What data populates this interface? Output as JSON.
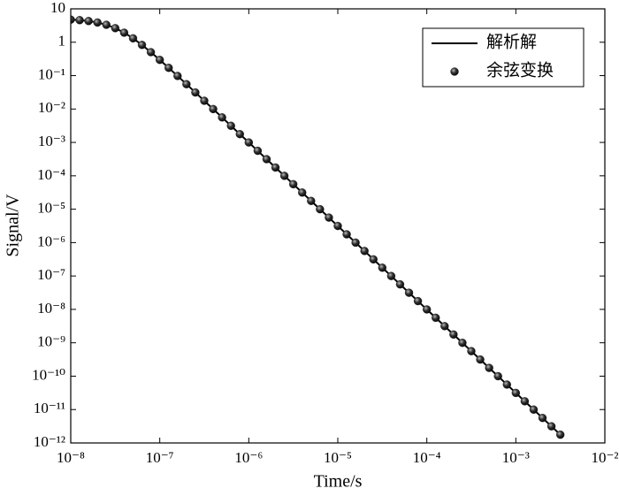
{
  "chart_data": {
    "type": "line",
    "xlabel": "Time/s",
    "ylabel": "Signal/V",
    "xscale": "log",
    "yscale": "log",
    "xlim": [
      1e-08,
      0.01
    ],
    "ylim": [
      1e-12,
      10
    ],
    "xticks": [
      {
        "value": 1e-08,
        "label": "10⁻⁸"
      },
      {
        "value": 1e-07,
        "label": "10⁻⁷"
      },
      {
        "value": 1e-06,
        "label": "10⁻⁶"
      },
      {
        "value": 1e-05,
        "label": "10⁻⁵"
      },
      {
        "value": 0.0001,
        "label": "10⁻⁴"
      },
      {
        "value": 0.001,
        "label": "10⁻³"
      },
      {
        "value": 0.01,
        "label": "10⁻²"
      }
    ],
    "yticks": [
      {
        "value": 1e-12,
        "label": "10⁻¹²"
      },
      {
        "value": 1e-11,
        "label": "10⁻¹¹"
      },
      {
        "value": 1e-10,
        "label": "10⁻¹⁰"
      },
      {
        "value": 1e-09,
        "label": "10⁻⁹"
      },
      {
        "value": 1e-08,
        "label": "10⁻⁸"
      },
      {
        "value": 1e-07,
        "label": "10⁻⁷"
      },
      {
        "value": 1e-06,
        "label": "10⁻⁶"
      },
      {
        "value": 1e-05,
        "label": "10⁻⁵"
      },
      {
        "value": 0.0001,
        "label": "10⁻⁴"
      },
      {
        "value": 0.001,
        "label": "10⁻³"
      },
      {
        "value": 0.01,
        "label": "10⁻²"
      },
      {
        "value": 0.1,
        "label": "10⁻¹"
      },
      1,
      10
    ],
    "legend": "upper right",
    "x": [
      1e-08,
      1.259e-08,
      1.585e-08,
      1.995e-08,
      2.512e-08,
      3.162e-08,
      3.981e-08,
      5.012e-08,
      6.31e-08,
      7.943e-08,
      1e-07,
      1.259e-07,
      1.585e-07,
      1.995e-07,
      2.512e-07,
      3.162e-07,
      3.981e-07,
      5.012e-07,
      6.31e-07,
      7.943e-07,
      1e-06,
      1.259e-06,
      1.585e-06,
      1.995e-06,
      2.512e-06,
      3.162e-06,
      3.981e-06,
      5.012e-06,
      6.31e-06,
      7.943e-06,
      1e-05,
      1.259e-05,
      1.585e-05,
      1.995e-05,
      2.512e-05,
      3.162e-05,
      3.981e-05,
      5.012e-05,
      6.31e-05,
      7.943e-05,
      0.0001,
      0.0001259,
      0.0001585,
      0.0001995,
      0.0002512,
      0.0003162,
      0.0003981,
      0.0005012,
      0.000631,
      0.0007943,
      0.001,
      0.001259,
      0.001585,
      0.001995,
      0.002512,
      0.003162
    ],
    "series": [
      {
        "name": "解析解",
        "mode": "line",
        "color": "#000000",
        "values": [
          4.761,
          4.591,
          4.316,
          3.901,
          3.331,
          2.644,
          1.934,
          1.31,
          0.8317,
          0.5044,
          0.2968,
          0.1714,
          0.0978,
          0.05548,
          0.03135,
          0.01768,
          0.00998,
          0.00561,
          0.00315,
          0.00177,
          0.000998,
          0.000561,
          0.000315,
          0.000177,
          9.98e-05,
          5.61e-05,
          3.15e-05,
          1.77e-05,
          9.98e-06,
          5.61e-06,
          3.15e-06,
          1.77e-06,
          9.98e-07,
          5.61e-07,
          3.15e-07,
          1.77e-07,
          9.98e-08,
          5.61e-08,
          3.15e-08,
          1.77e-08,
          9.98e-09,
          5.61e-09,
          3.15e-09,
          1.77e-09,
          9.98e-10,
          5.61e-10,
          3.15e-10,
          1.77e-10,
          9.98e-11,
          5.61e-11,
          3.15e-11,
          1.77e-11,
          9.98e-12,
          5.61e-12,
          3.15e-12,
          1.77e-12
        ]
      },
      {
        "name": "余弦变换",
        "mode": "markers",
        "color": "#222222",
        "values": [
          4.761,
          4.591,
          4.316,
          3.901,
          3.331,
          2.644,
          1.934,
          1.31,
          0.8317,
          0.5044,
          0.2968,
          0.1714,
          0.0978,
          0.05548,
          0.03135,
          0.01768,
          0.00998,
          0.00561,
          0.00315,
          0.00177,
          0.000998,
          0.000561,
          0.000315,
          0.000177,
          9.98e-05,
          5.61e-05,
          3.15e-05,
          1.77e-05,
          9.98e-06,
          5.61e-06,
          3.15e-06,
          1.77e-06,
          9.98e-07,
          5.61e-07,
          3.15e-07,
          1.77e-07,
          9.98e-08,
          5.61e-08,
          3.15e-08,
          1.77e-08,
          9.98e-09,
          5.61e-09,
          3.15e-09,
          1.77e-09,
          9.98e-10,
          5.61e-10,
          3.15e-10,
          1.77e-10,
          9.98e-11,
          5.61e-11,
          3.15e-11,
          1.77e-11,
          9.98e-12,
          5.61e-12,
          3.15e-12,
          1.77e-12
        ]
      }
    ]
  }
}
